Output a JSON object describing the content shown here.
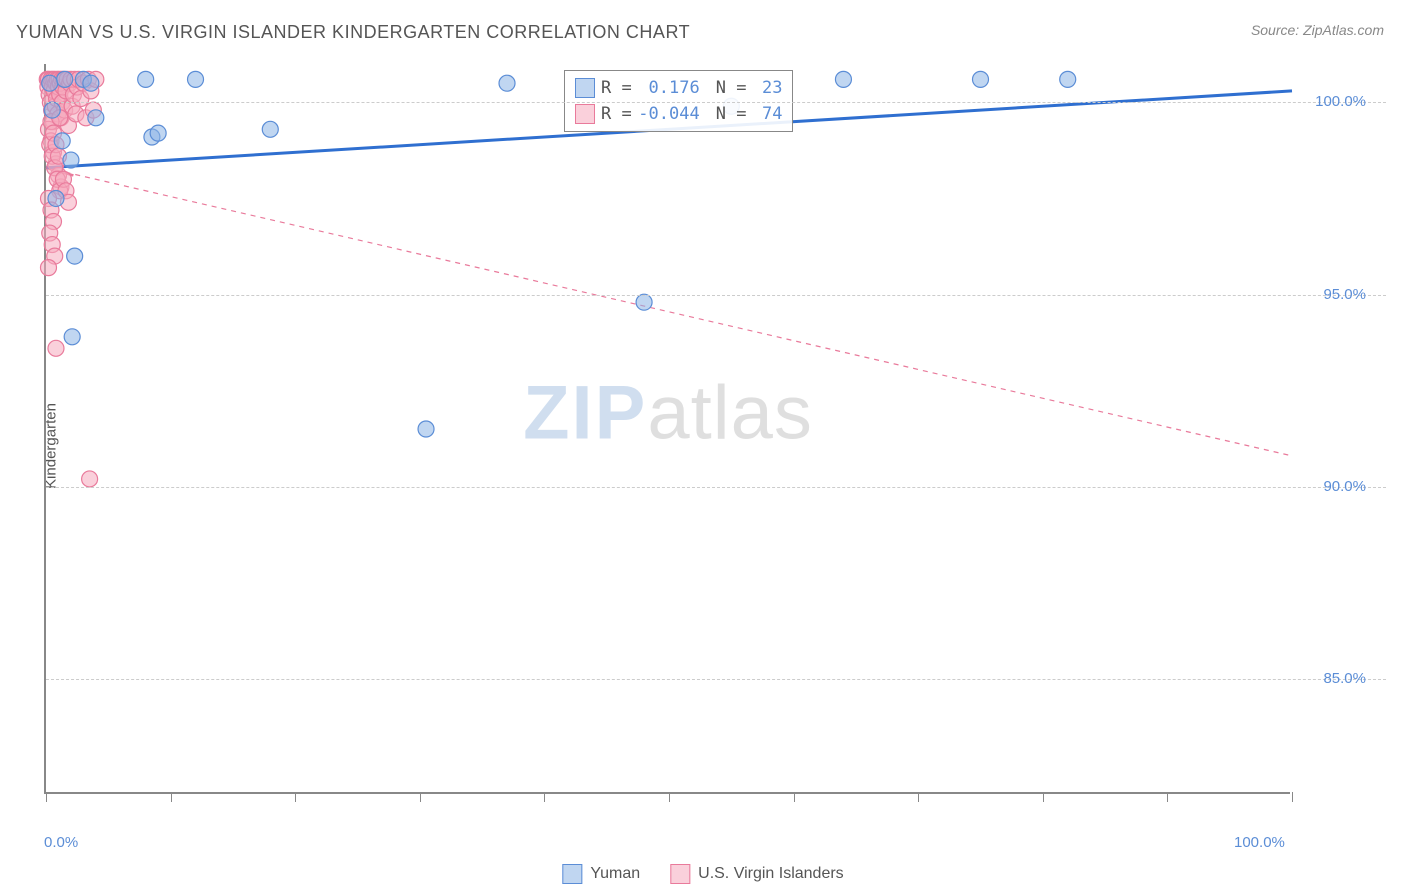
{
  "title": "YUMAN VS U.S. VIRGIN ISLANDER KINDERGARTEN CORRELATION CHART",
  "source": "Source: ZipAtlas.com",
  "ylabel": "Kindergarten",
  "watermark_zip": "ZIP",
  "watermark_atlas": "atlas",
  "chart": {
    "type": "scatter",
    "background_color": "#ffffff",
    "grid_color": "#cccccc",
    "axis_color": "#888888",
    "xlim": [
      0,
      100
    ],
    "ylim": [
      82,
      101
    ],
    "x_ticks": [
      0,
      10,
      20,
      30,
      40,
      50,
      60,
      70,
      80,
      90,
      100
    ],
    "x_tick_labels_shown": {
      "0": "0.0%",
      "100": "100.0%"
    },
    "y_ticks": [
      85,
      90,
      95,
      100
    ],
    "y_tick_labels": {
      "85": "85.0%",
      "90": "90.0%",
      "95": "95.0%",
      "100": "100.0%"
    },
    "y_tick_label_color": "#5b8dd6",
    "x_tick_label_color": "#5b8dd6",
    "marker_radius": 8,
    "marker_stroke_width": 1.2,
    "series": {
      "yuman": {
        "label": "Yuman",
        "fill_color": "rgba(140,180,230,0.55)",
        "stroke_color": "#5b8dd6",
        "trend_color": "#2f6fd0",
        "trend_width": 3,
        "trend_dash": "none",
        "R": "0.176",
        "N": "23",
        "trend_line": {
          "x1": 0,
          "y1": 98.3,
          "x2": 100,
          "y2": 100.3
        },
        "points": [
          {
            "x": 0.3,
            "y": 100.5
          },
          {
            "x": 0.5,
            "y": 99.8
          },
          {
            "x": 1.3,
            "y": 99.0
          },
          {
            "x": 1.5,
            "y": 100.6
          },
          {
            "x": 2.0,
            "y": 98.5
          },
          {
            "x": 3.0,
            "y": 100.6
          },
          {
            "x": 3.6,
            "y": 100.5
          },
          {
            "x": 4.0,
            "y": 99.6
          },
          {
            "x": 8.0,
            "y": 100.6
          },
          {
            "x": 8.5,
            "y": 99.1
          },
          {
            "x": 9.0,
            "y": 99.2
          },
          {
            "x": 12.0,
            "y": 100.6
          },
          {
            "x": 18.0,
            "y": 99.3
          },
          {
            "x": 37.0,
            "y": 100.5
          },
          {
            "x": 48.0,
            "y": 94.8
          },
          {
            "x": 55.0,
            "y": 99.9
          },
          {
            "x": 64.0,
            "y": 100.6
          },
          {
            "x": 75.0,
            "y": 100.6
          },
          {
            "x": 82.0,
            "y": 100.6
          },
          {
            "x": 2.3,
            "y": 96.0
          },
          {
            "x": 2.1,
            "y": 93.9
          },
          {
            "x": 30.5,
            "y": 91.5
          },
          {
            "x": 0.8,
            "y": 97.5
          }
        ]
      },
      "usvi": {
        "label": "U.S. Virgin Islanders",
        "fill_color": "rgba(245,170,190,0.55)",
        "stroke_color": "#e97a9b",
        "trend_color": "#e97a9b",
        "trend_width": 1.2,
        "trend_dash": "5,5",
        "R": "-0.044",
        "N": "74",
        "trend_line": {
          "x1": 0,
          "y1": 98.3,
          "x2": 100,
          "y2": 90.8
        },
        "points": [
          {
            "x": 0.1,
            "y": 100.6
          },
          {
            "x": 0.15,
            "y": 100.4
          },
          {
            "x": 0.2,
            "y": 100.6
          },
          {
            "x": 0.25,
            "y": 100.2
          },
          {
            "x": 0.3,
            "y": 100.5
          },
          {
            "x": 0.35,
            "y": 100.0
          },
          {
            "x": 0.4,
            "y": 100.6
          },
          {
            "x": 0.45,
            "y": 99.8
          },
          {
            "x": 0.5,
            "y": 100.4
          },
          {
            "x": 0.55,
            "y": 100.6
          },
          {
            "x": 0.6,
            "y": 99.5
          },
          {
            "x": 0.65,
            "y": 100.3
          },
          {
            "x": 0.7,
            "y": 100.6
          },
          {
            "x": 0.75,
            "y": 99.9
          },
          {
            "x": 0.8,
            "y": 100.5
          },
          {
            "x": 0.85,
            "y": 100.1
          },
          {
            "x": 0.9,
            "y": 100.6
          },
          {
            "x": 0.95,
            "y": 99.7
          },
          {
            "x": 1.0,
            "y": 100.4
          },
          {
            "x": 1.05,
            "y": 100.6
          },
          {
            "x": 1.1,
            "y": 100.2
          },
          {
            "x": 1.15,
            "y": 100.5
          },
          {
            "x": 1.2,
            "y": 99.6
          },
          {
            "x": 1.25,
            "y": 100.6
          },
          {
            "x": 1.3,
            "y": 100.0
          },
          {
            "x": 1.35,
            "y": 100.4
          },
          {
            "x": 1.4,
            "y": 100.6
          },
          {
            "x": 1.5,
            "y": 99.8
          },
          {
            "x": 1.6,
            "y": 100.3
          },
          {
            "x": 1.7,
            "y": 100.6
          },
          {
            "x": 1.8,
            "y": 99.4
          },
          {
            "x": 1.9,
            "y": 100.5
          },
          {
            "x": 2.0,
            "y": 100.6
          },
          {
            "x": 2.1,
            "y": 99.9
          },
          {
            "x": 2.2,
            "y": 100.2
          },
          {
            "x": 2.3,
            "y": 100.6
          },
          {
            "x": 2.4,
            "y": 99.7
          },
          {
            "x": 2.5,
            "y": 100.4
          },
          {
            "x": 2.6,
            "y": 100.6
          },
          {
            "x": 2.8,
            "y": 100.1
          },
          {
            "x": 3.0,
            "y": 100.5
          },
          {
            "x": 3.2,
            "y": 99.6
          },
          {
            "x": 3.4,
            "y": 100.6
          },
          {
            "x": 3.6,
            "y": 100.3
          },
          {
            "x": 3.8,
            "y": 99.8
          },
          {
            "x": 4.0,
            "y": 100.6
          },
          {
            "x": 0.2,
            "y": 99.3
          },
          {
            "x": 0.4,
            "y": 99.0
          },
          {
            "x": 0.6,
            "y": 98.7
          },
          {
            "x": 0.8,
            "y": 98.4
          },
          {
            "x": 1.0,
            "y": 98.1
          },
          {
            "x": 1.2,
            "y": 97.8
          },
          {
            "x": 0.3,
            "y": 98.9
          },
          {
            "x": 0.5,
            "y": 98.6
          },
          {
            "x": 0.7,
            "y": 98.3
          },
          {
            "x": 0.9,
            "y": 98.0
          },
          {
            "x": 1.1,
            "y": 97.7
          },
          {
            "x": 0.2,
            "y": 97.5
          },
          {
            "x": 0.4,
            "y": 97.2
          },
          {
            "x": 0.6,
            "y": 96.9
          },
          {
            "x": 0.3,
            "y": 96.6
          },
          {
            "x": 0.5,
            "y": 96.3
          },
          {
            "x": 0.7,
            "y": 96.0
          },
          {
            "x": 0.2,
            "y": 95.7
          },
          {
            "x": 0.4,
            "y": 99.5
          },
          {
            "x": 0.6,
            "y": 99.2
          },
          {
            "x": 0.8,
            "y": 98.9
          },
          {
            "x": 1.0,
            "y": 98.6
          },
          {
            "x": 1.4,
            "y": 98.0
          },
          {
            "x": 1.6,
            "y": 97.7
          },
          {
            "x": 1.8,
            "y": 97.4
          },
          {
            "x": 0.8,
            "y": 93.6
          },
          {
            "x": 3.5,
            "y": 90.2
          },
          {
            "x": 1.1,
            "y": 99.6
          }
        ]
      }
    }
  },
  "legend_top": {
    "r_label": "R =",
    "n_label": "N ="
  },
  "legend_bottom": {
    "items": [
      "yuman",
      "usvi"
    ]
  }
}
